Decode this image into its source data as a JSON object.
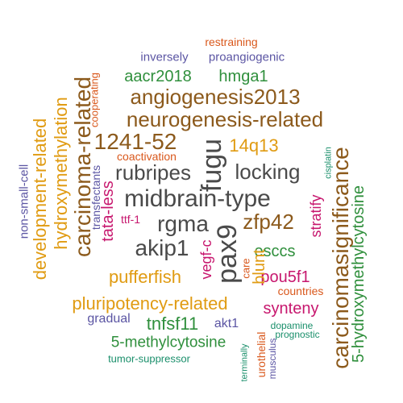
{
  "palette": {
    "dark_gray": "#4a4a4a",
    "brown": "#8c5a1c",
    "gold": "#e09b12",
    "green": "#2f8f3c",
    "purple": "#5b55a3",
    "magenta": "#c7176e",
    "orange": "#d9581c",
    "teal": "#1a8f6b"
  },
  "words": [
    {
      "text": "restraining",
      "color": "orange"
    },
    {
      "text": "inversely",
      "color": "purple"
    },
    {
      "text": "proangiogenic",
      "color": "purple"
    },
    {
      "text": "aacr2018",
      "color": "green"
    },
    {
      "text": "hmga1",
      "color": "green"
    },
    {
      "text": "angiogenesis2013",
      "color": "brown"
    },
    {
      "text": "neurogenesis-related",
      "color": "brown"
    },
    {
      "text": "1241-52",
      "color": "brown"
    },
    {
      "text": "14q13",
      "color": "gold"
    },
    {
      "text": "coactivation",
      "color": "orange"
    },
    {
      "text": "rubripes",
      "color": "dark_gray"
    },
    {
      "text": "fugu",
      "color": "dark_gray"
    },
    {
      "text": "locking",
      "color": "dark_gray"
    },
    {
      "text": "midbrain-type",
      "color": "dark_gray"
    },
    {
      "text": "rgma",
      "color": "dark_gray"
    },
    {
      "text": "zfp42",
      "color": "brown"
    },
    {
      "text": "ttf-1",
      "color": "magenta"
    },
    {
      "text": "akip1",
      "color": "dark_gray"
    },
    {
      "text": "pax9",
      "color": "dark_gray"
    },
    {
      "text": "esccs",
      "color": "green"
    },
    {
      "text": "pufferfish",
      "color": "gold"
    },
    {
      "text": "pou5f1",
      "color": "magenta"
    },
    {
      "text": "care",
      "color": "orange"
    },
    {
      "text": "countries",
      "color": "orange"
    },
    {
      "text": "pluripotency-related",
      "color": "gold"
    },
    {
      "text": "synteny",
      "color": "magenta"
    },
    {
      "text": "gradual",
      "color": "purple"
    },
    {
      "text": "tnfsf11",
      "color": "green"
    },
    {
      "text": "akt1",
      "color": "purple"
    },
    {
      "text": "dopamine",
      "color": "teal"
    },
    {
      "text": "prognostic",
      "color": "teal"
    },
    {
      "text": "5-methylcytosine",
      "color": "green"
    },
    {
      "text": "tumor-suppressor",
      "color": "teal"
    },
    {
      "text": "non-small-cell",
      "color": "purple"
    },
    {
      "text": "development-related",
      "color": "gold"
    },
    {
      "text": "hydroxymethylation",
      "color": "gold"
    },
    {
      "text": "carcinoma-related",
      "color": "brown"
    },
    {
      "text": "cooperating",
      "color": "orange"
    },
    {
      "text": "transfectants",
      "color": "purple"
    },
    {
      "text": "tata-less",
      "color": "magenta"
    },
    {
      "text": "vegf-c",
      "color": "magenta"
    },
    {
      "text": "blunt",
      "color": "gold"
    },
    {
      "text": "stratify",
      "color": "magenta"
    },
    {
      "text": "cisplatin",
      "color": "teal"
    },
    {
      "text": "carcinomasignificance",
      "color": "brown"
    },
    {
      "text": "5-hydroxymethylcytosine",
      "color": "green"
    },
    {
      "text": "urothelial",
      "color": "orange"
    },
    {
      "text": "musculus",
      "color": "purple"
    },
    {
      "text": "terminally",
      "color": "teal"
    }
  ]
}
